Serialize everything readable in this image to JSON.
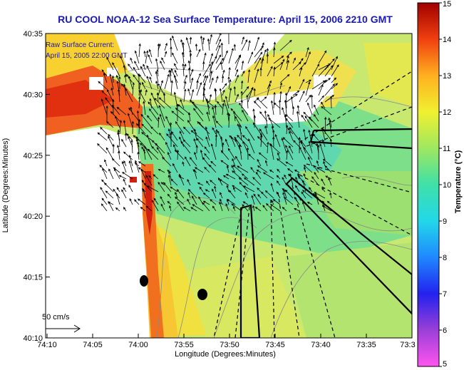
{
  "chart_data": {
    "type": "heatmap",
    "title": "RU COOL  NOAA-12  Sea Surface Temperature:  April 15, 2006 2210 GMT",
    "xlabel": "Longitude (Degrees:Minutes)",
    "ylabel": "Latitude (Degrees:Minutes)",
    "x_ticks": [
      "74:10",
      "74:05",
      "74:00",
      "73:55",
      "73:50",
      "73:45",
      "73:40",
      "73:35",
      "73:3"
    ],
    "y_ticks": [
      "40:35",
      "40:30",
      "40:25",
      "40:20",
      "40:15",
      "40:10"
    ],
    "colorbar": {
      "label": "Temperature (°C)",
      "ticks": [
        "15",
        "14",
        "13",
        "12",
        "11",
        "10",
        "9",
        "8",
        "7",
        "6",
        "5"
      ],
      "range": [
        5,
        15
      ]
    },
    "annotations": {
      "current_title": "Raw Surface Current:",
      "current_date": "April 15, 2005 22:00 GMT",
      "scale_label": "50 cm/s"
    }
  }
}
